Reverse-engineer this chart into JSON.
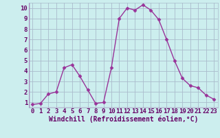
{
  "x": [
    0,
    1,
    2,
    3,
    4,
    5,
    6,
    7,
    8,
    9,
    10,
    11,
    12,
    13,
    14,
    15,
    16,
    17,
    18,
    19,
    20,
    21,
    22,
    23
  ],
  "y": [
    0.8,
    0.9,
    1.8,
    2.0,
    4.3,
    4.6,
    3.5,
    2.2,
    0.9,
    1.0,
    4.3,
    9.0,
    10.0,
    9.8,
    10.3,
    9.8,
    8.9,
    7.0,
    5.0,
    3.3,
    2.6,
    2.4,
    1.7,
    1.3
  ],
  "line_color": "#993399",
  "marker": "D",
  "marker_size": 2.5,
  "bg_color": "#cceeee",
  "grid_color": "#aabbcc",
  "xlabel": "Windchill (Refroidissement éolien,°C)",
  "xlim": [
    -0.5,
    23.5
  ],
  "ylim": [
    0.5,
    10.5
  ],
  "xticks": [
    0,
    1,
    2,
    3,
    4,
    5,
    6,
    7,
    8,
    9,
    10,
    11,
    12,
    13,
    14,
    15,
    16,
    17,
    18,
    19,
    20,
    21,
    22,
    23
  ],
  "yticks": [
    1,
    2,
    3,
    4,
    5,
    6,
    7,
    8,
    9,
    10
  ],
  "font_color": "#660066",
  "tick_fontsize": 6.5,
  "xlabel_fontsize": 7.0,
  "linewidth": 1.0
}
